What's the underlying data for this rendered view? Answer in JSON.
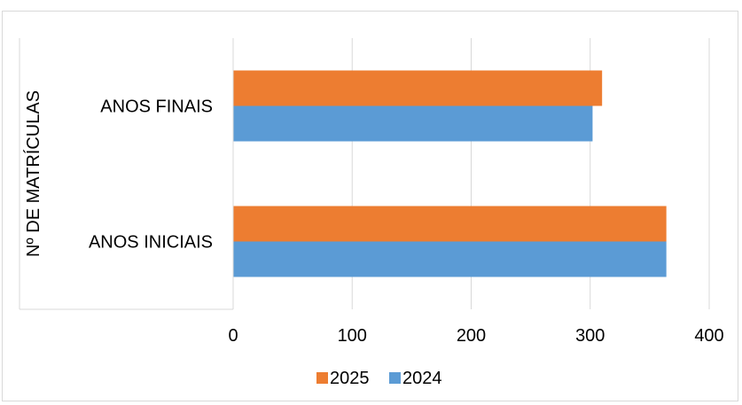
{
  "chart_data": {
    "type": "bar",
    "orientation": "horizontal",
    "title": "",
    "categories": [
      "ANOS INICIAIS",
      "ANOS FINAIS"
    ],
    "series": [
      {
        "name": "2024",
        "color": "#5b9bd5",
        "values": [
          364,
          302
        ]
      },
      {
        "name": "2025",
        "color": "#ed7d31",
        "values": [
          364,
          310
        ]
      }
    ],
    "xlabel": "",
    "ylabel": "Nº DE MATRÍCULAS",
    "xlim": [
      0,
      400
    ],
    "x_ticks": [
      "0",
      "100",
      "200",
      "300",
      "400"
    ],
    "grid": "vertical",
    "legend": {
      "position": "bottom",
      "entries": [
        "2025",
        "2024"
      ]
    }
  }
}
